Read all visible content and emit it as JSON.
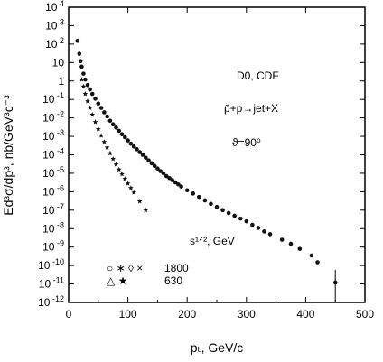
{
  "chart_data": {
    "type": "scatter",
    "title": "",
    "xlabel": "pₜ, GeV/c",
    "ylabel": "Ed³σ/dp³, nb/GeV³c⁻³",
    "xlim": [
      0,
      500
    ],
    "ylim": [
      1e-12,
      10000
    ],
    "y_scale": "log",
    "grid": false,
    "x_ticks": [
      "0",
      "100",
      "200",
      "300",
      "400",
      "500"
    ],
    "y_ticks": [
      {
        "base": "10",
        "exp": "4"
      },
      {
        "base": "10",
        "exp": "3"
      },
      {
        "base": "10",
        "exp": "2"
      },
      {
        "base": "10",
        "exp": ""
      },
      {
        "base": "1",
        "exp": ""
      },
      {
        "base": "10",
        "exp": "-1"
      },
      {
        "base": "10",
        "exp": "-2"
      },
      {
        "base": "10",
        "exp": "-3"
      },
      {
        "base": "10",
        "exp": "-4"
      },
      {
        "base": "10",
        "exp": "-5"
      },
      {
        "base": "10",
        "exp": "-6"
      },
      {
        "base": "10",
        "exp": "-7"
      },
      {
        "base": "10",
        "exp": "-8"
      },
      {
        "base": "10",
        "exp": "-9"
      },
      {
        "base": "10",
        "exp": "-10"
      },
      {
        "base": "10",
        "exp": "-11"
      },
      {
        "base": "10",
        "exp": "-12"
      }
    ],
    "annotations": {
      "experiment": "D0, CDF",
      "process": "p̄+p→jet+X",
      "angle": "ϑ=90⁰",
      "energy_label": "s¹ᐟ², GeV",
      "legend_1800_symbols": "○ ∗ ◊ ×",
      "legend_1800_value": "1800",
      "legend_630_symbols": "△ ★",
      "legend_630_value": "630"
    },
    "series": [
      {
        "name": "1800",
        "points": [
          [
            15,
            150
          ],
          [
            18,
            30
          ],
          [
            20,
            12
          ],
          [
            22,
            6
          ],
          [
            25,
            2.5
          ],
          [
            28,
            1.2
          ],
          [
            32,
            0.6
          ],
          [
            36,
            0.35
          ],
          [
            40,
            0.2
          ],
          [
            45,
            0.11
          ],
          [
            50,
            0.06
          ],
          [
            55,
            0.035
          ],
          [
            60,
            0.02
          ],
          [
            65,
            0.012
          ],
          [
            70,
            0.007
          ],
          [
            75,
            0.0045
          ],
          [
            80,
            0.003
          ],
          [
            85,
            0.002
          ],
          [
            90,
            0.0013
          ],
          [
            95,
            0.0009
          ],
          [
            100,
            0.0006
          ],
          [
            105,
            0.0004
          ],
          [
            110,
            0.00028
          ],
          [
            115,
            0.0002
          ],
          [
            120,
            0.00014
          ],
          [
            125,
            0.0001
          ],
          [
            130,
            7e-05
          ],
          [
            135,
            5e-05
          ],
          [
            140,
            3.5e-05
          ],
          [
            145,
            2.5e-05
          ],
          [
            150,
            1.8e-05
          ],
          [
            155,
            1.3e-05
          ],
          [
            160,
            1e-05
          ],
          [
            165,
            7e-06
          ],
          [
            170,
            5.5e-06
          ],
          [
            175,
            4.2e-06
          ],
          [
            180,
            3.2e-06
          ],
          [
            185,
            2.5e-06
          ],
          [
            190,
            1.9e-06
          ],
          [
            200,
            1.2e-06
          ],
          [
            210,
            8e-07
          ],
          [
            220,
            5.2e-07
          ],
          [
            230,
            3.4e-07
          ],
          [
            240,
            2.2e-07
          ],
          [
            250,
            1.5e-07
          ],
          [
            260,
            1e-07
          ],
          [
            270,
            7e-08
          ],
          [
            280,
            5e-08
          ],
          [
            290,
            3.5e-08
          ],
          [
            300,
            2.5e-08
          ],
          [
            310,
            1.6e-08
          ],
          [
            320,
            1.1e-08
          ],
          [
            330,
            7e-09
          ],
          [
            340,
            5e-09
          ],
          [
            360,
            2.5e-09
          ],
          [
            375,
            1.5e-09
          ],
          [
            390,
            8e-10
          ],
          [
            410,
            3.5e-10
          ],
          [
            420,
            1.5e-10
          ],
          [
            450,
            1.2e-11
          ]
        ]
      },
      {
        "name": "630",
        "points": [
          [
            22,
            1.2
          ],
          [
            25,
            0.5
          ],
          [
            28,
            0.2
          ],
          [
            32,
            0.08
          ],
          [
            36,
            0.035
          ],
          [
            40,
            0.015
          ],
          [
            45,
            0.006
          ],
          [
            50,
            0.0025
          ],
          [
            55,
            0.0011
          ],
          [
            60,
            0.0005
          ],
          [
            65,
            0.00025
          ],
          [
            70,
            0.00012
          ],
          [
            75,
            6e-05
          ],
          [
            80,
            3e-05
          ],
          [
            85,
            1.6e-05
          ],
          [
            90,
            9e-06
          ],
          [
            95,
            5e-06
          ],
          [
            100,
            2.8e-06
          ],
          [
            105,
            1.6e-06
          ],
          [
            110,
            9e-07
          ],
          [
            120,
            3e-07
          ],
          [
            130,
            1e-07
          ]
        ]
      }
    ]
  }
}
